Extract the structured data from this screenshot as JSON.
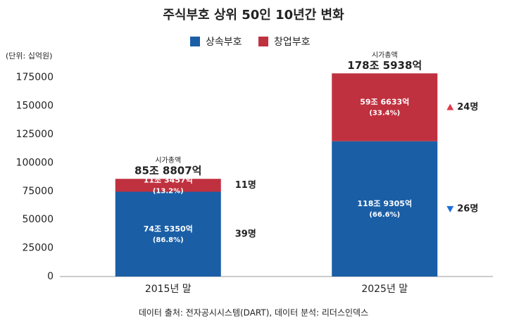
{
  "chart_data": {
    "type": "stacked_bar",
    "title": "주식부호 상위 50인 10년간 변화",
    "unit_label": "(단위: 십억원)",
    "source": "데이터 출처: 전자공시시스템(DART), 데이터 분석: 리더스인덱스",
    "categories": [
      "2015년 말",
      "2025년 말"
    ],
    "series": [
      {
        "name": "상속부호",
        "color": "#1a5fa6",
        "values": [
          74535.0,
          118930.5
        ],
        "value_labels": [
          "74조 5350억",
          "118조 9305억"
        ],
        "percent_labels": [
          "(86.8%)",
          "(66.6%)"
        ],
        "count_labels": [
          "39명",
          "26명"
        ],
        "change": [
          null,
          "down"
        ]
      },
      {
        "name": "창업부호",
        "color": "#c0313f",
        "values": [
          11345.7,
          59663.3
        ],
        "value_labels": [
          "11조 3457억",
          "59조 6633억"
        ],
        "percent_labels": [
          "(13.2%)",
          "(33.4%)"
        ],
        "count_labels": [
          "11명",
          "24명"
        ],
        "change": [
          null,
          "up"
        ]
      }
    ],
    "total_caption": "시가총액",
    "totals": [
      85880.7,
      178593.8
    ],
    "total_labels": [
      "85조 8807억",
      "178조 5938억"
    ],
    "ylim": [
      0,
      180000
    ],
    "yticks": [
      0,
      25000,
      50000,
      75000,
      100000,
      125000,
      150000,
      175000
    ],
    "change_colors": {
      "up": "#e03a4a",
      "down": "#1e6fd9"
    }
  }
}
